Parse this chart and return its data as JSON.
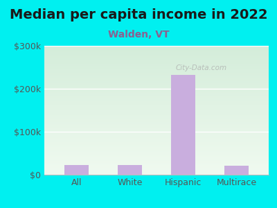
{
  "title": "Median per capita income in 2022",
  "subtitle": "Walden, VT",
  "categories": [
    "All",
    "White",
    "Hispanic",
    "Multirace"
  ],
  "values": [
    22000,
    22000,
    232000,
    21000
  ],
  "bar_color": "#c9aede",
  "title_color": "#1a1a1a",
  "subtitle_color": "#8b6090",
  "tick_color": "#555555",
  "outer_bg_color": "#00f0f0",
  "plot_bg_color_top": "#d4edda",
  "plot_bg_color_bottom": "#f0faf0",
  "watermark": "City-Data.com",
  "ylim": [
    0,
    300000
  ],
  "yticks": [
    0,
    100000,
    200000,
    300000
  ],
  "ytick_labels": [
    "$0",
    "$100k",
    "$200k",
    "$300k"
  ],
  "title_fontsize": 14,
  "subtitle_fontsize": 10,
  "tick_fontsize": 9
}
